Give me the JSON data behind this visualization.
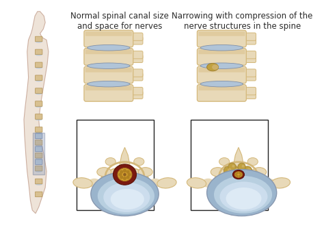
{
  "bg_color": "#ffffff",
  "label_left": "Normal spinal canal size\nand space for nerves",
  "label_right": "Narrowing with compression of the\nnerve structures in the spine",
  "label_fontsize": 8.5,
  "label_color": "#2a2a2a",
  "bone_light": "#e8d9b8",
  "bone_tan": "#d4b87a",
  "bone_dark": "#b8924a",
  "bone_shadow": "#c4a060",
  "disc_blue_out": "#9ab4cc",
  "disc_blue_mid": "#b8cfe0",
  "disc_blue_in": "#ccdded",
  "disc_blue_center": "#ddeaf5",
  "canal_red": "#7a1a10",
  "canal_dark": "#5a1208",
  "nerve_yellow": "#d4a030",
  "nerve_dark": "#b08020",
  "body_fill": "#ede0d4",
  "body_edge": "#c8a898",
  "highlight_box": "#4060a0",
  "highlight_fill": "#8899cc",
  "spur_color": "#c0a040",
  "spur_dark": "#a08030"
}
